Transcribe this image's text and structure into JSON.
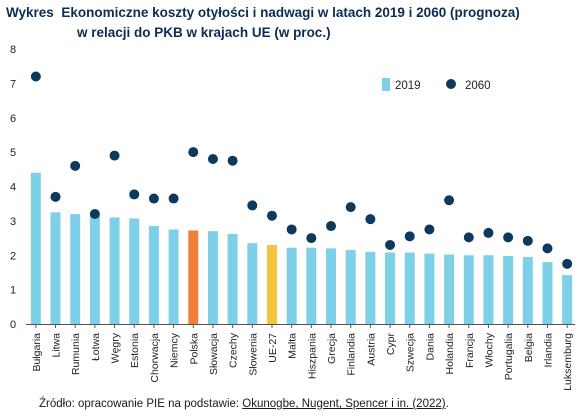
{
  "title_prefix": "Wykres",
  "title_line1": "Ekonomiczne koszty otyłości i nadwagi w latach 2019 i 2060 (prognoza)",
  "title_line2": "w relacji do PKB w krajach UE (w proc.)",
  "source": {
    "prefix": "Źródło: opracowanie  PIE na podstawie: ",
    "reference": "Okunogbe, Nugent, Spencer i in. (2022)",
    "suffix": "."
  },
  "colors": {
    "bar_default": "#7dd0e8",
    "bar_poland": "#f07f3c",
    "bar_eu": "#f5c342",
    "dot": "#0d3a5c",
    "axis": "#555555",
    "title": "#0d2c54"
  },
  "chart_data": {
    "type": "bar",
    "categories": [
      "Bułgaria",
      "Litwa",
      "Rumunia",
      "Łotwa",
      "Węgry",
      "Estonia",
      "Chorwacja",
      "Niemcy",
      "Polska",
      "Słowacja",
      "Czechy",
      "Słowenia",
      "UE-27",
      "Malta",
      "Hiszpania",
      "Grecja",
      "Finlandia",
      "Austria",
      "Cypr",
      "Szwecja",
      "Dania",
      "Holandia",
      "Francja",
      "Włochy",
      "Portugalia",
      "Belgia",
      "Irlandia",
      "Luksemburg"
    ],
    "series": [
      {
        "name": "2019",
        "type": "bar",
        "values": [
          4.4,
          3.25,
          3.2,
          3.15,
          3.1,
          3.07,
          2.85,
          2.75,
          2.72,
          2.7,
          2.62,
          2.35,
          2.3,
          2.22,
          2.22,
          2.2,
          2.15,
          2.1,
          2.08,
          2.08,
          2.05,
          2.02,
          2.0,
          2.0,
          1.98,
          1.95,
          1.8,
          1.42
        ]
      },
      {
        "name": "2060",
        "type": "scatter",
        "values": [
          7.2,
          3.7,
          4.6,
          3.2,
          4.9,
          3.77,
          3.65,
          3.65,
          5.0,
          4.8,
          4.75,
          3.45,
          3.15,
          2.75,
          2.5,
          2.85,
          3.4,
          3.05,
          2.3,
          2.55,
          2.75,
          3.6,
          2.52,
          2.65,
          2.52,
          2.42,
          2.2,
          1.75
        ]
      }
    ],
    "highlight": {
      "Polska": "bar_poland",
      "UE-27": "bar_eu"
    },
    "y_ticks": [
      0,
      1,
      2,
      3,
      4,
      5,
      6,
      7,
      8
    ],
    "ylim": [
      0,
      8
    ],
    "grid": false,
    "legend_position": "top-right"
  }
}
